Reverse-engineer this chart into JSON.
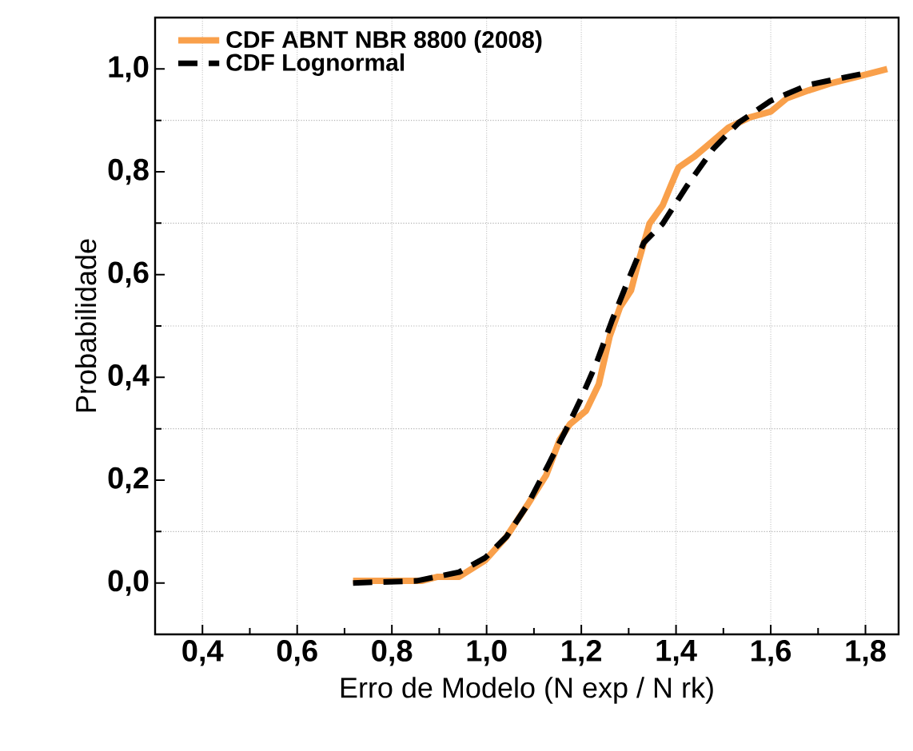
{
  "chart_data": {
    "type": "line",
    "xlabel": "Erro de Modelo (N exp / N rk)",
    "ylabel": "Probabilidade",
    "xlim": [
      0.3,
      1.87
    ],
    "ylim": [
      -0.1,
      1.1
    ],
    "xticks": [
      {
        "value": 0.4,
        "label": "0,4"
      },
      {
        "value": 0.6,
        "label": "0,6"
      },
      {
        "value": 0.8,
        "label": "0,8"
      },
      {
        "value": 1.0,
        "label": "1,0"
      },
      {
        "value": 1.2,
        "label": "1,2"
      },
      {
        "value": 1.4,
        "label": "1,4"
      },
      {
        "value": 1.6,
        "label": "1,6"
      },
      {
        "value": 1.8,
        "label": "1,8"
      }
    ],
    "yticks": [
      {
        "value": 0.0,
        "label": "0,0"
      },
      {
        "value": 0.2,
        "label": "0,2"
      },
      {
        "value": 0.4,
        "label": "0,4"
      },
      {
        "value": 0.6,
        "label": "0,6"
      },
      {
        "value": 0.8,
        "label": "0,8"
      },
      {
        "value": 1.0,
        "label": "1,0"
      }
    ],
    "grid": true,
    "legend": "top left",
    "series": [
      {
        "name": "CDF ABNT NBR 8800 (2008)",
        "color": "#f9a04b",
        "line_style": "solid",
        "x": [
          0.718,
          0.863,
          0.897,
          0.942,
          0.997,
          1.042,
          1.087,
          1.126,
          1.154,
          1.176,
          1.21,
          1.237,
          1.26,
          1.282,
          1.305,
          1.321,
          1.344,
          1.372,
          1.388,
          1.405,
          1.438,
          1.478,
          1.511,
          1.556,
          1.6,
          1.634,
          1.679,
          1.723,
          1.779,
          1.846
        ],
        "values": [
          0.004,
          0.004,
          0.012,
          0.012,
          0.044,
          0.09,
          0.153,
          0.21,
          0.278,
          0.309,
          0.335,
          0.387,
          0.48,
          0.537,
          0.569,
          0.626,
          0.699,
          0.735,
          0.771,
          0.808,
          0.829,
          0.86,
          0.886,
          0.906,
          0.917,
          0.943,
          0.958,
          0.971,
          0.984,
          1.0
        ]
      },
      {
        "name": "CDF Lognormal",
        "color": "#000000",
        "line_style": "dashed",
        "x": [
          0.718,
          0.852,
          0.942,
          0.997,
          1.042,
          1.087,
          1.131,
          1.165,
          1.198,
          1.232,
          1.265,
          1.299,
          1.332,
          1.372,
          1.422,
          1.478,
          1.533,
          1.6,
          1.679,
          1.79
        ],
        "values": [
          0.0,
          0.004,
          0.021,
          0.049,
          0.09,
          0.153,
          0.231,
          0.293,
          0.356,
          0.428,
          0.511,
          0.589,
          0.662,
          0.699,
          0.771,
          0.844,
          0.896,
          0.938,
          0.969,
          0.99
        ]
      }
    ]
  }
}
